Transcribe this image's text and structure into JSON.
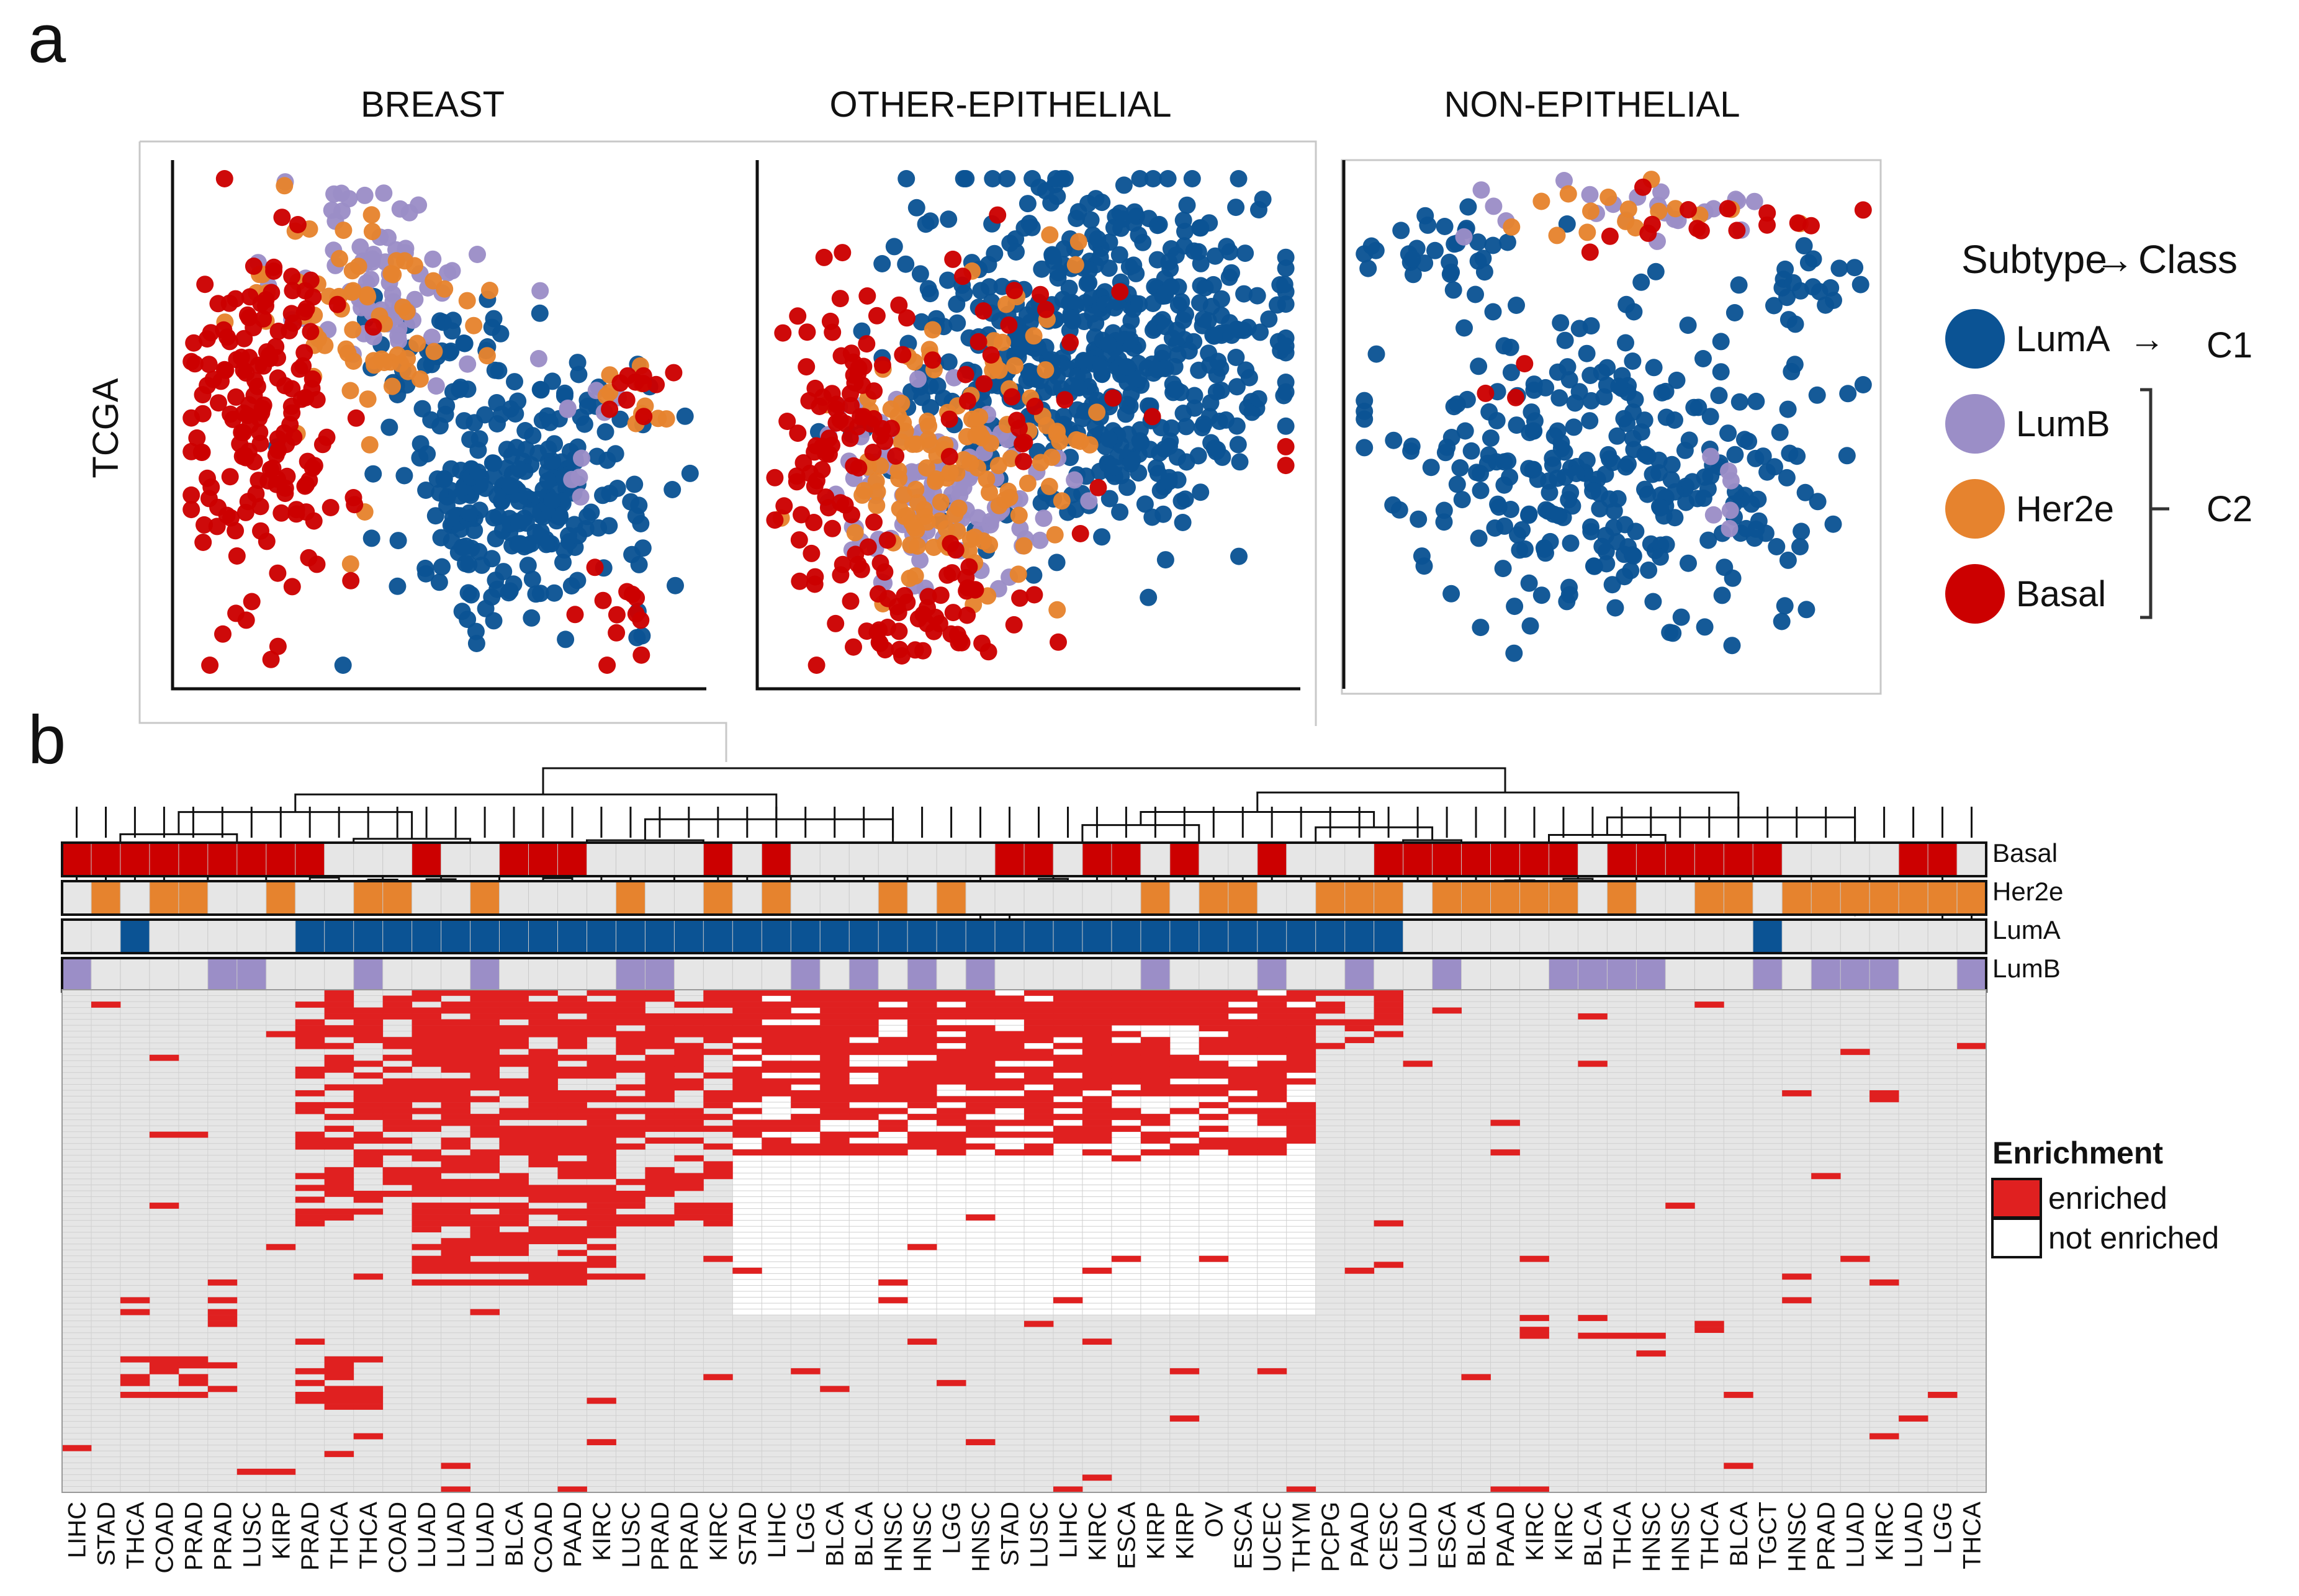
{
  "panel_labels": {
    "a": "a",
    "b": "b"
  },
  "panel_a": {
    "row_label": "TCGA",
    "scatter_titles": [
      "BREAST",
      "OTHER-EPITHELIAL",
      "NON-EPITHELIAL"
    ],
    "legend": {
      "title_subtype": "Subtype",
      "title_class": "Class",
      "items": [
        {
          "label": "LumA",
          "color": "#0b5394"
        },
        {
          "label": "LumB",
          "color": "#9b8ec7"
        },
        {
          "label": "Her2e",
          "color": "#e6832e"
        },
        {
          "label": "Basal",
          "color": "#cc0000"
        }
      ],
      "class_c1": "C1",
      "class_c2": "C2"
    }
  },
  "panel_b": {
    "annotation_rows": [
      "Basal",
      "Her2e",
      "LumA",
      "LumB"
    ],
    "annotation_colors": {
      "Basal": "#cc0000",
      "Her2e": "#e6832e",
      "LumA": "#0b5394",
      "LumB": "#9b8ec7",
      "none": "#e6e6e6"
    },
    "enrichment_legend": {
      "title": "Enrichment",
      "items": [
        {
          "label": "enriched",
          "color": "#e02020"
        },
        {
          "label": "not enriched",
          "color": "#ffffff"
        }
      ]
    }
  },
  "chart_data": [
    {
      "type": "scatter",
      "title": "BREAST",
      "xlabel": "",
      "ylabel": "TCGA",
      "series": [
        {
          "name": "LumA",
          "clusters": [
            {
              "cx": 0.66,
              "cy": 0.35,
              "sx": 0.13,
              "sy": 0.12,
              "n": 260
            },
            {
              "cx": 0.52,
              "cy": 0.62,
              "sx": 0.08,
              "sy": 0.07,
              "n": 40
            }
          ]
        },
        {
          "name": "LumB",
          "clusters": [
            {
              "cx": 0.38,
              "cy": 0.78,
              "sx": 0.1,
              "sy": 0.09,
              "n": 70
            },
            {
              "cx": 0.78,
              "cy": 0.5,
              "sx": 0.05,
              "sy": 0.08,
              "n": 10
            }
          ]
        },
        {
          "name": "Her2e",
          "clusters": [
            {
              "cx": 0.35,
              "cy": 0.7,
              "sx": 0.12,
              "sy": 0.12,
              "n": 70
            },
            {
              "cx": 0.88,
              "cy": 0.55,
              "sx": 0.04,
              "sy": 0.05,
              "n": 10
            }
          ]
        },
        {
          "name": "Basal",
          "clusters": [
            {
              "cx": 0.15,
              "cy": 0.5,
              "sx": 0.08,
              "sy": 0.2,
              "n": 170
            },
            {
              "cx": 0.88,
              "cy": 0.6,
              "sx": 0.03,
              "sy": 0.04,
              "n": 10
            },
            {
              "cx": 0.88,
              "cy": 0.12,
              "sx": 0.05,
              "sy": 0.05,
              "n": 12
            }
          ]
        }
      ]
    },
    {
      "type": "scatter",
      "title": "OTHER-EPITHELIAL",
      "series": [
        {
          "name": "LumA",
          "clusters": [
            {
              "cx": 0.62,
              "cy": 0.66,
              "sx": 0.18,
              "sy": 0.16,
              "n": 520
            },
            {
              "cx": 0.7,
              "cy": 0.4,
              "sx": 0.08,
              "sy": 0.08,
              "n": 40
            }
          ]
        },
        {
          "name": "LumB",
          "clusters": [
            {
              "cx": 0.32,
              "cy": 0.37,
              "sx": 0.1,
              "sy": 0.1,
              "n": 110
            }
          ]
        },
        {
          "name": "Her2e",
          "clusters": [
            {
              "cx": 0.33,
              "cy": 0.38,
              "sx": 0.12,
              "sy": 0.12,
              "n": 110
            },
            {
              "cx": 0.5,
              "cy": 0.6,
              "sx": 0.15,
              "sy": 0.15,
              "n": 30
            }
          ]
        },
        {
          "name": "Basal",
          "clusters": [
            {
              "cx": 0.14,
              "cy": 0.45,
              "sx": 0.06,
              "sy": 0.18,
              "n": 90
            },
            {
              "cx": 0.33,
              "cy": 0.12,
              "sx": 0.08,
              "sy": 0.05,
              "n": 50
            },
            {
              "cx": 0.5,
              "cy": 0.6,
              "sx": 0.2,
              "sy": 0.15,
              "n": 40
            }
          ]
        }
      ]
    },
    {
      "type": "scatter",
      "title": "NON-EPITHELIAL",
      "series": [
        {
          "name": "LumA",
          "clusters": [
            {
              "cx": 0.5,
              "cy": 0.4,
              "sx": 0.2,
              "sy": 0.15,
              "n": 300
            },
            {
              "cx": 0.15,
              "cy": 0.85,
              "sx": 0.08,
              "sy": 0.04,
              "n": 30
            },
            {
              "cx": 0.9,
              "cy": 0.75,
              "sx": 0.06,
              "sy": 0.05,
              "n": 20
            }
          ]
        },
        {
          "name": "LumB",
          "clusters": [
            {
              "cx": 0.55,
              "cy": 0.93,
              "sx": 0.15,
              "sy": 0.03,
              "n": 22
            },
            {
              "cx": 0.7,
              "cy": 0.35,
              "sx": 0.05,
              "sy": 0.04,
              "n": 6
            }
          ]
        },
        {
          "name": "Her2e",
          "clusters": [
            {
              "cx": 0.52,
              "cy": 0.92,
              "sx": 0.15,
              "sy": 0.03,
              "n": 16
            }
          ]
        },
        {
          "name": "Basal",
          "clusters": [
            {
              "cx": 0.65,
              "cy": 0.9,
              "sx": 0.15,
              "sy": 0.03,
              "n": 15
            },
            {
              "cx": 0.3,
              "cy": 0.6,
              "sx": 0.05,
              "sy": 0.05,
              "n": 3
            }
          ]
        }
      ]
    },
    {
      "type": "heatmap",
      "title": "",
      "xlabel": "",
      "ylabel": "",
      "columns": [
        "LIHC",
        "STAD",
        "THCA",
        "COAD",
        "PRAD",
        "PRAD",
        "LUSC",
        "KIRP",
        "PRAD",
        "THCA",
        "THCA",
        "COAD",
        "LUAD",
        "LUAD",
        "LUAD",
        "BLCA",
        "COAD",
        "PAAD",
        "KIRC",
        "LUSC",
        "PRAD",
        "PRAD",
        "KIRC",
        "STAD",
        "LIHC",
        "LGG",
        "BLCA",
        "BLCA",
        "HNSC",
        "HNSC",
        "LGG",
        "HNSC",
        "STAD",
        "LUSC",
        "LIHC",
        "KIRC",
        "ESCA",
        "KIRP",
        "KIRP",
        "OV",
        "ESCA",
        "UCEC",
        "THYM",
        "PCPG",
        "PAAD",
        "CESC",
        "LUAD",
        "ESCA",
        "BLCA",
        "PAAD",
        "KIRC",
        "KIRC",
        "BLCA",
        "THCA",
        "HNSC",
        "HNSC",
        "THCA",
        "BLCA",
        "TGCT",
        "HNSC",
        "PRAD",
        "LUAD",
        "KIRC",
        "LUAD",
        "LGG",
        "THCA"
      ],
      "annotations": {
        "Basal": [
          1,
          1,
          1,
          1,
          1,
          1,
          1,
          1,
          1,
          0,
          0,
          0,
          1,
          0,
          0,
          1,
          1,
          1,
          0,
          0,
          0,
          0,
          1,
          0,
          1,
          0,
          0,
          0,
          0,
          0,
          0,
          0,
          1,
          1,
          0,
          1,
          1,
          0,
          1,
          0,
          0,
          1,
          0,
          0,
          0,
          1,
          1,
          1,
          1,
          1,
          1,
          1,
          0,
          1,
          1,
          1,
          1,
          1,
          1,
          0,
          0,
          0,
          0,
          1,
          1,
          0
        ],
        "Her2e": [
          0,
          1,
          0,
          1,
          1,
          0,
          0,
          1,
          0,
          0,
          1,
          1,
          0,
          0,
          1,
          0,
          0,
          0,
          0,
          1,
          0,
          0,
          1,
          0,
          1,
          0,
          0,
          0,
          1,
          0,
          1,
          0,
          0,
          0,
          0,
          0,
          0,
          1,
          0,
          1,
          1,
          0,
          0,
          1,
          1,
          1,
          0,
          1,
          1,
          1,
          1,
          1,
          0,
          1,
          0,
          0,
          1,
          1,
          0,
          1,
          1,
          1,
          1,
          1,
          1,
          1
        ],
        "LumA": [
          0,
          0,
          1,
          0,
          0,
          0,
          0,
          0,
          1,
          1,
          1,
          1,
          1,
          1,
          1,
          1,
          1,
          1,
          1,
          1,
          1,
          1,
          1,
          1,
          1,
          1,
          1,
          1,
          1,
          1,
          1,
          1,
          1,
          1,
          1,
          1,
          1,
          1,
          1,
          1,
          1,
          1,
          1,
          1,
          1,
          1,
          0,
          0,
          0,
          0,
          0,
          0,
          0,
          0,
          0,
          0,
          0,
          0,
          1,
          0,
          0,
          0,
          0,
          0,
          0,
          0
        ],
        "LumB": [
          1,
          0,
          0,
          0,
          0,
          1,
          1,
          0,
          0,
          0,
          1,
          0,
          0,
          0,
          1,
          0,
          0,
          0,
          0,
          1,
          1,
          0,
          0,
          0,
          0,
          1,
          0,
          1,
          0,
          1,
          0,
          1,
          0,
          0,
          0,
          0,
          0,
          1,
          0,
          0,
          0,
          1,
          0,
          0,
          1,
          0,
          0,
          1,
          0,
          0,
          0,
          1,
          1,
          1,
          1,
          0,
          0,
          0,
          1,
          0,
          1,
          1,
          1,
          0,
          0,
          1
        ]
      },
      "row_count": 85,
      "value_legend": [
        "enriched",
        "not enriched"
      ]
    }
  ]
}
